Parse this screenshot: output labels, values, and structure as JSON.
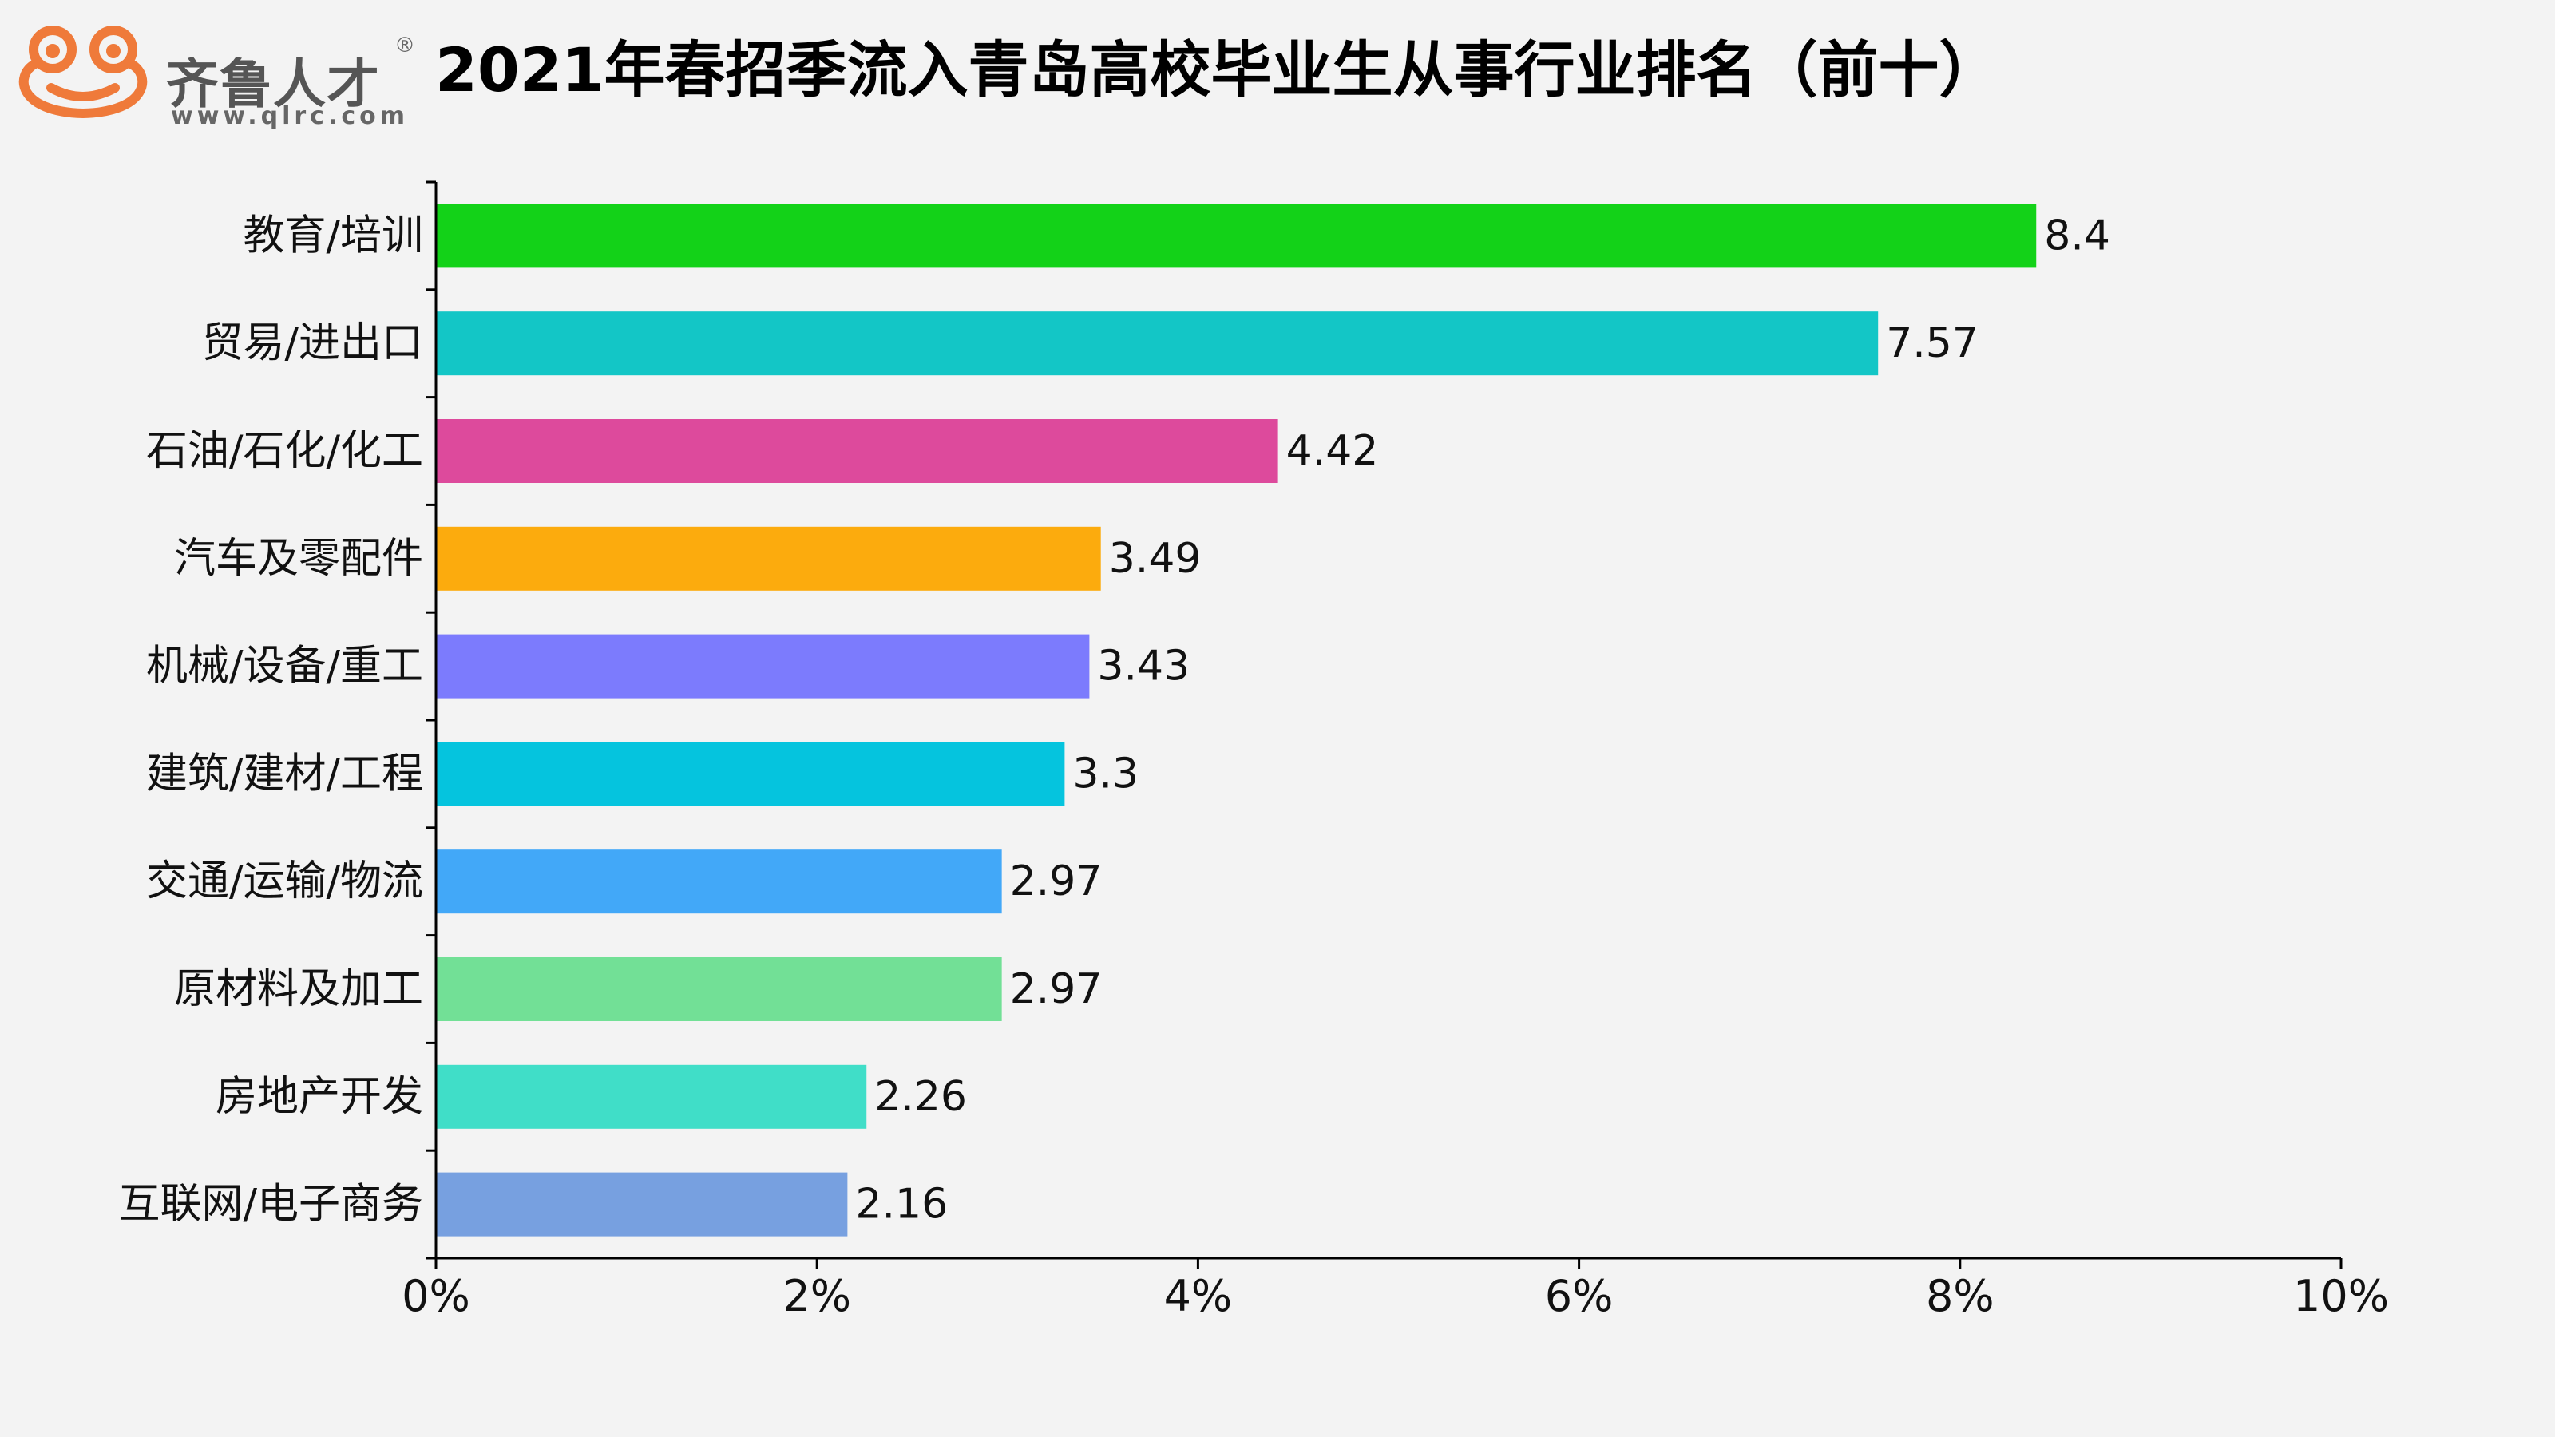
{
  "logo": {
    "name": "齐鲁人才",
    "url": "www.qlrc.com",
    "registered_mark": "®",
    "accent_color": "#ef7a3a"
  },
  "chart_data": {
    "type": "bar",
    "orientation": "horizontal",
    "title": "2021年春招季流入青岛高校毕业生从事行业排名（前十）",
    "categories": [
      "教育/培训",
      "贸易/进出口",
      "石油/石化/化工",
      "汽车及零配件",
      "机械/设备/重工",
      "建筑/建材/工程",
      "交通/运输/物流",
      "原材料及加工",
      "房地产开发",
      "互联网/电子商务"
    ],
    "values": [
      8.4,
      7.57,
      4.42,
      3.49,
      3.43,
      3.3,
      2.97,
      2.97,
      2.26,
      2.16
    ],
    "value_labels": [
      "8.4",
      "7.57",
      "4.42",
      "3.49",
      "3.43",
      "3.3",
      "2.97",
      "2.97",
      "2.26",
      "2.16"
    ],
    "colors": [
      "#13d218",
      "#13c6c6",
      "#dd4a9c",
      "#fcab0d",
      "#7c7bfd",
      "#05c4de",
      "#42a8f8",
      "#72e096",
      "#40dec8",
      "#77a0e0"
    ],
    "xlim": [
      0,
      10
    ],
    "xticks": [
      0,
      2,
      4,
      6,
      8,
      10
    ],
    "xtick_labels": [
      "0%",
      "2%",
      "4%",
      "6%",
      "8%",
      "10%"
    ],
    "xlabel": "",
    "ylabel": "",
    "grid": false,
    "legend": "none"
  }
}
